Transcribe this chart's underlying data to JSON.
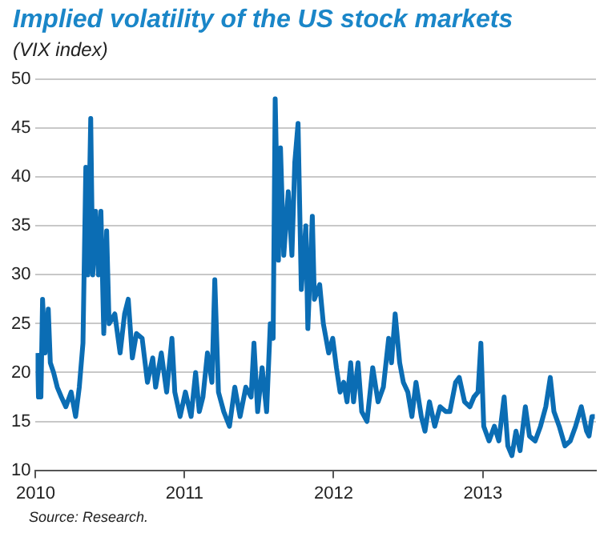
{
  "chart_data": {
    "type": "line",
    "title": "Implied volatility of the US stock markets",
    "subtitle": "(VIX index)",
    "annotations": [
      "Source: Research."
    ],
    "x": [
      "2010-01-04",
      "2010-01-08",
      "2010-01-14",
      "2010-01-18",
      "2010-01-24",
      "2010-02-01",
      "2010-02-06",
      "2010-02-14",
      "2010-02-23",
      "2010-03-05",
      "2010-03-16",
      "2010-03-29",
      "2010-04-09",
      "2010-04-18",
      "2010-04-27",
      "2010-05-04",
      "2010-05-09",
      "2010-05-16",
      "2010-05-21",
      "2010-05-28",
      "2010-06-04",
      "2010-06-10",
      "2010-06-17",
      "2010-06-24",
      "2010-06-30",
      "2010-07-14",
      "2010-07-27",
      "2010-08-07",
      "2010-08-16",
      "2010-08-26",
      "2010-09-05",
      "2010-09-19",
      "2010-10-02",
      "2010-10-15",
      "2010-10-22",
      "2010-11-05",
      "2010-11-18",
      "2010-12-01",
      "2010-12-08",
      "2010-12-21",
      "2011-01-03",
      "2011-01-17",
      "2011-01-28",
      "2011-02-06",
      "2011-02-15",
      "2011-02-26",
      "2011-03-09",
      "2011-03-16",
      "2011-03-25",
      "2011-04-07",
      "2011-04-21",
      "2011-05-04",
      "2011-05-17",
      "2011-05-31",
      "2011-06-13",
      "2011-06-20",
      "2011-06-29",
      "2011-07-10",
      "2011-07-21",
      "2011-07-30",
      "2011-08-06",
      "2011-08-11",
      "2011-08-19",
      "2011-08-24",
      "2011-09-01",
      "2011-09-12",
      "2011-09-21",
      "2011-09-28",
      "2011-10-06",
      "2011-10-14",
      "2011-10-25",
      "2011-10-30",
      "2011-11-10",
      "2011-11-15",
      "2011-11-28",
      "2011-12-07",
      "2011-12-20",
      "2011-12-30",
      "2012-01-08",
      "2012-01-17",
      "2012-01-26",
      "2012-02-03",
      "2012-02-12",
      "2012-02-19",
      "2012-03-01",
      "2012-03-10",
      "2012-03-23",
      "2012-04-06",
      "2012-04-19",
      "2012-05-02",
      "2012-05-15",
      "2012-05-22",
      "2012-05-31",
      "2012-06-11",
      "2012-06-20",
      "2012-07-01",
      "2012-07-11",
      "2012-07-21",
      "2012-08-03",
      "2012-08-12",
      "2012-08-23",
      "2012-09-05",
      "2012-09-18",
      "2012-10-02",
      "2012-10-12",
      "2012-10-26",
      "2012-11-04",
      "2012-11-17",
      "2012-11-30",
      "2012-12-10",
      "2012-12-20",
      "2012-12-27",
      "2013-01-03",
      "2013-01-16",
      "2013-01-29",
      "2013-02-09",
      "2013-02-22",
      "2013-03-03",
      "2013-03-13",
      "2013-03-23",
      "2013-04-02",
      "2013-04-15",
      "2013-04-25",
      "2013-05-09",
      "2013-05-22",
      "2013-06-04",
      "2013-06-15",
      "2013-06-24",
      "2013-07-07",
      "2013-07-21",
      "2013-08-03",
      "2013-08-16",
      "2013-08-30",
      "2013-09-12",
      "2013-09-18",
      "2013-09-25",
      "2013-10-02"
    ],
    "series": [
      {
        "color": "#0b6db4",
        "values": [
          22,
          17.5,
          17.5,
          27.5,
          22,
          26.5,
          21,
          20,
          18.5,
          17.5,
          16.5,
          18,
          15.5,
          18.5,
          23,
          41,
          30,
          46,
          30,
          36.5,
          30,
          36.5,
          24,
          34.5,
          25,
          26,
          22,
          26,
          27.5,
          21.5,
          24,
          23.5,
          19,
          21.5,
          18.5,
          22,
          18,
          23.5,
          18,
          15.5,
          18,
          15.5,
          20,
          16,
          17.5,
          22,
          19,
          29.5,
          18,
          16,
          14.5,
          18.5,
          15.5,
          18.5,
          17.5,
          23,
          16,
          20.5,
          16,
          25,
          23.5,
          48,
          31.5,
          43,
          32,
          38.5,
          32,
          41.5,
          45.5,
          28.5,
          35,
          24.5,
          36,
          27.5,
          29,
          25,
          22,
          23.5,
          20.5,
          18,
          19,
          17,
          21,
          17,
          21,
          16,
          15,
          20.5,
          17,
          18.5,
          23.5,
          21,
          26,
          21,
          19,
          18,
          15.5,
          19,
          15.5,
          14,
          17,
          14.5,
          16.5,
          16,
          16,
          19,
          19.5,
          17,
          16.5,
          17.5,
          18,
          23,
          14.5,
          13,
          14.5,
          13,
          17.5,
          12.5,
          11.5,
          14,
          12,
          16.5,
          13.5,
          13,
          14.5,
          16.5,
          19.5,
          16,
          14.5,
          12.5,
          13,
          14.5,
          16.5,
          14,
          13.5,
          15.5,
          15.5
        ]
      }
    ],
    "xlim": [
      "2010-01-01",
      "2013-10-05"
    ],
    "xticks": [
      "2010",
      "2011",
      "2012",
      "2013"
    ],
    "ylim": [
      10,
      50
    ],
    "yticks": [
      10,
      15,
      20,
      25,
      30,
      35,
      40,
      45,
      50
    ],
    "grid": "y",
    "legend": false,
    "marker": "none",
    "line_style": "solid"
  }
}
